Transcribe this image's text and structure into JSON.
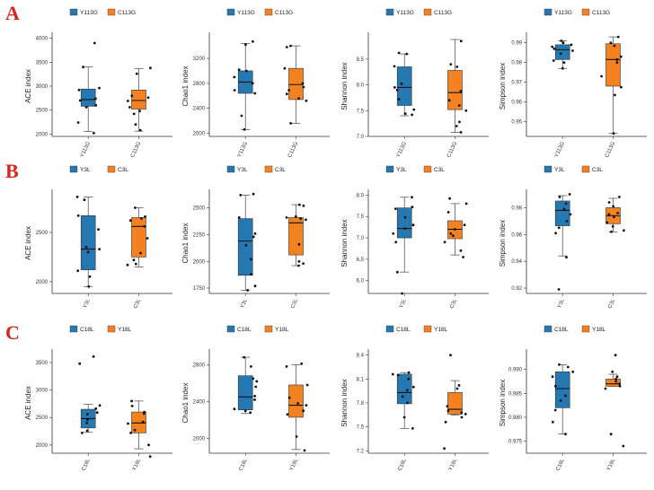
{
  "colors": {
    "blue": "#2678b2",
    "orange": "#f58220",
    "point": "#111111",
    "axis": "#333333",
    "row_label": "#d7261e"
  },
  "row_labels": [
    "A",
    "B",
    "C"
  ],
  "chart_data": [
    {
      "type": "box",
      "panel": "A-ACE",
      "ylabel": "ACE index",
      "legend": [
        "Y113G",
        "C113G"
      ],
      "categories": [
        "Y113G",
        "C113G"
      ],
      "ylim": [
        1950,
        4050
      ],
      "yticks": [
        2000,
        2500,
        3000,
        3500,
        4000
      ],
      "boxes": [
        {
          "min": 2050,
          "q1": 2580,
          "median": 2720,
          "q3": 2940,
          "max": 3400
        },
        {
          "min": 2060,
          "q1": 2520,
          "median": 2700,
          "q3": 2920,
          "max": 3370
        }
      ],
      "points": [
        [
          2020,
          2240,
          2560,
          2600,
          2700,
          2740,
          2920,
          2960,
          3400,
          3900
        ],
        [
          2080,
          2200,
          2420,
          2480,
          2560,
          2690,
          2760,
          2800,
          3260,
          3380
        ]
      ]
    },
    {
      "type": "box",
      "panel": "A-Chao1",
      "ylabel": "Chao1 index",
      "legend": [
        "Y113G",
        "C113G"
      ],
      "categories": [
        "Y113G",
        "C113G"
      ],
      "ylim": [
        1950,
        3560
      ],
      "yticks": [
        2000,
        2400,
        2800,
        3200
      ],
      "boxes": [
        {
          "min": 2060,
          "q1": 2640,
          "median": 2820,
          "q3": 3000,
          "max": 3440
        },
        {
          "min": 2160,
          "q1": 2540,
          "median": 2780,
          "q3": 3040,
          "max": 3400
        }
      ],
      "points": [
        [
          2060,
          2280,
          2640,
          2690,
          2800,
          2900,
          3000,
          3020,
          3420,
          3470
        ],
        [
          2160,
          2520,
          2560,
          2630,
          2690,
          2740,
          2800,
          3040,
          3380,
          3400
        ]
      ]
    },
    {
      "type": "box",
      "panel": "A-Shannon",
      "ylabel": "Shannon index",
      "legend": [
        "Y113G",
        "C113G"
      ],
      "categories": [
        "Y113G",
        "C113G"
      ],
      "ylim": [
        7.0,
        8.95
      ],
      "yticks": [
        7.0,
        7.5,
        8.0,
        8.5
      ],
      "boxes": [
        {
          "min": 7.4,
          "q1": 7.6,
          "median": 7.95,
          "q3": 8.35,
          "max": 8.6
        },
        {
          "min": 7.08,
          "q1": 7.52,
          "median": 7.85,
          "q3": 8.28,
          "max": 8.88
        }
      ],
      "points": [
        [
          7.42,
          7.44,
          7.52,
          7.72,
          7.9,
          7.95,
          8.02,
          8.36,
          8.6,
          8.62
        ],
        [
          7.08,
          7.2,
          7.28,
          7.5,
          7.6,
          7.7,
          7.88,
          8.35,
          8.4,
          8.85
        ]
      ]
    },
    {
      "type": "box",
      "panel": "A-Simpson",
      "ylabel": "Simpson index",
      "legend": [
        "Y113G",
        "C113G"
      ],
      "categories": [
        "Y113G",
        "C113G"
      ],
      "ylim": [
        0.9425,
        0.9935
      ],
      "yticks": [
        0.95,
        0.96,
        0.97,
        0.98,
        0.99
      ],
      "boxes": [
        {
          "min": 0.977,
          "q1": 0.9815,
          "median": 0.9865,
          "q3": 0.989,
          "max": 0.991
        },
        {
          "min": 0.944,
          "q1": 0.968,
          "median": 0.9815,
          "q3": 0.9895,
          "max": 0.993
        }
      ],
      "points": [
        [
          0.977,
          0.98,
          0.981,
          0.9845,
          0.986,
          0.987,
          0.988,
          0.989,
          0.99,
          0.991
        ],
        [
          0.944,
          0.9635,
          0.9675,
          0.973,
          0.98,
          0.9815,
          0.983,
          0.9885,
          0.99,
          0.993
        ]
      ]
    },
    {
      "type": "box",
      "panel": "B-ACE",
      "ylabel": "ACE index",
      "legend": [
        "Y3L",
        "C3L"
      ],
      "categories": [
        "Y3L",
        "C3L"
      ],
      "ylim": [
        1880,
        2900
      ],
      "yticks": [
        2000,
        2500
      ],
      "boxes": [
        {
          "min": 1950,
          "q1": 2120,
          "median": 2330,
          "q3": 2670,
          "max": 2860
        },
        {
          "min": 2150,
          "q1": 2250,
          "median": 2560,
          "q3": 2650,
          "max": 2750
        }
      ],
      "points": [
        [
          1950,
          2050,
          2110,
          2300,
          2330,
          2350,
          2530,
          2670,
          2830,
          2860
        ],
        [
          2170,
          2180,
          2220,
          2290,
          2440,
          2560,
          2620,
          2640,
          2660,
          2750
        ]
      ]
    },
    {
      "type": "box",
      "panel": "B-Chao1",
      "ylabel": "Chao1 index",
      "legend": [
        "Y3L",
        "C3L"
      ],
      "categories": [
        "Y3L",
        "C3L"
      ],
      "ylim": [
        1700,
        2640
      ],
      "yticks": [
        1750,
        2000,
        2250,
        2500
      ],
      "boxes": [
        {
          "min": 1730,
          "q1": 1870,
          "median": 2190,
          "q3": 2400,
          "max": 2620
        },
        {
          "min": 1960,
          "q1": 2060,
          "median": 2360,
          "q3": 2410,
          "max": 2530
        }
      ],
      "points": [
        [
          1730,
          1770,
          1880,
          2020,
          2150,
          2230,
          2260,
          2410,
          2620,
          2630
        ],
        [
          1960,
          1980,
          2000,
          2160,
          2390,
          2400,
          2410,
          2420,
          2520,
          2530
        ]
      ]
    },
    {
      "type": "box",
      "panel": "B-Shannon",
      "ylabel": "Shannon index",
      "legend": [
        "Y3L",
        "C3L"
      ],
      "categories": [
        "Y3L",
        "C3L"
      ],
      "ylim": [
        5.7,
        8.05
      ],
      "yticks": [
        6.0,
        6.5,
        7.0,
        7.5,
        8.0
      ],
      "boxes": [
        {
          "min": 6.2,
          "q1": 7.0,
          "median": 7.22,
          "q3": 7.7,
          "max": 7.95
        },
        {
          "min": 6.6,
          "q1": 6.98,
          "median": 7.2,
          "q3": 7.4,
          "max": 7.8
        }
      ],
      "points": [
        [
          5.7,
          6.2,
          6.9,
          7.1,
          7.22,
          7.3,
          7.48,
          7.68,
          7.72,
          7.95
        ],
        [
          6.55,
          6.7,
          6.9,
          7.05,
          7.1,
          7.2,
          7.3,
          7.6,
          7.8,
          7.92
        ]
      ]
    },
    {
      "type": "box",
      "panel": "B-Simpson",
      "ylabel": "Simpson index",
      "legend": [
        "Y3L",
        "C3L"
      ],
      "categories": [
        "Y3L",
        "C3L"
      ],
      "ylim": [
        0.916,
        0.991
      ],
      "yticks": [
        0.92,
        0.94,
        0.96,
        0.98
      ],
      "boxes": [
        {
          "min": 0.944,
          "q1": 0.9665,
          "median": 0.978,
          "q3": 0.985,
          "max": 0.989
        },
        {
          "min": 0.962,
          "q1": 0.968,
          "median": 0.974,
          "q3": 0.98,
          "max": 0.987
        }
      ],
      "points": [
        [
          0.919,
          0.943,
          0.961,
          0.965,
          0.97,
          0.975,
          0.979,
          0.983,
          0.988,
          0.99
        ],
        [
          0.962,
          0.963,
          0.966,
          0.969,
          0.973,
          0.975,
          0.976,
          0.981,
          0.984,
          0.988
        ]
      ]
    },
    {
      "type": "box",
      "panel": "C-ACE",
      "ylabel": "ACE index",
      "legend": [
        "C18L",
        "Y18L"
      ],
      "categories": [
        "C18L",
        "Y18L"
      ],
      "ylim": [
        1850,
        3680
      ],
      "yticks": [
        2000,
        2500,
        3000,
        3500
      ],
      "boxes": [
        {
          "min": 2230,
          "q1": 2310,
          "median": 2480,
          "q3": 2650,
          "max": 2740
        },
        {
          "min": 1930,
          "q1": 2220,
          "median": 2400,
          "q3": 2600,
          "max": 2800
        }
      ],
      "points": [
        [
          2220,
          2260,
          2400,
          2460,
          2560,
          2590,
          2660,
          2720,
          3480,
          3610
        ],
        [
          1790,
          2000,
          2220,
          2270,
          2390,
          2420,
          2570,
          2600,
          2710,
          2800
        ]
      ]
    },
    {
      "type": "box",
      "panel": "C-Chao1",
      "ylabel": "Chao1 index",
      "legend": [
        "C18L",
        "Y18L"
      ],
      "categories": [
        "C18L",
        "Y18L"
      ],
      "ylim": [
        1840,
        2930
      ],
      "yticks": [
        2000,
        2400,
        2800
      ],
      "boxes": [
        {
          "min": 2270,
          "q1": 2310,
          "median": 2450,
          "q3": 2680,
          "max": 2880
        },
        {
          "min": 1880,
          "q1": 2230,
          "median": 2360,
          "q3": 2580,
          "max": 2800
        }
      ],
      "points": [
        [
          2280,
          2300,
          2320,
          2420,
          2460,
          2560,
          2620,
          2650,
          2780,
          2880
        ],
        [
          1870,
          2020,
          2260,
          2300,
          2360,
          2380,
          2440,
          2580,
          2780,
          2810
        ]
      ]
    },
    {
      "type": "box",
      "panel": "C-Shannon",
      "ylabel": "Shannon index",
      "legend": [
        "C18L",
        "Y18L"
      ],
      "categories": [
        "C18L",
        "Y18L"
      ],
      "ylim": [
        7.17,
        8.43
      ],
      "yticks": [
        7.2,
        7.5,
        7.8,
        8.1,
        8.4
      ],
      "boxes": [
        {
          "min": 7.48,
          "q1": 7.79,
          "median": 7.93,
          "q3": 8.16,
          "max": 8.18
        },
        {
          "min": 7.65,
          "q1": 7.66,
          "median": 7.72,
          "q3": 7.93,
          "max": 8.08
        }
      ],
      "points": [
        [
          7.48,
          7.62,
          7.8,
          7.88,
          7.96,
          8.0,
          8.1,
          8.15,
          8.16,
          8.18
        ],
        [
          7.23,
          7.56,
          7.62,
          7.66,
          7.68,
          7.7,
          7.76,
          7.98,
          8.02,
          8.4
        ]
      ]
    },
    {
      "type": "box",
      "panel": "C-Simpson",
      "ylabel": "Simpson index",
      "legend": [
        "C18L",
        "Y18L"
      ],
      "categories": [
        "C18L",
        "Y18L"
      ],
      "ylim": [
        0.9725,
        0.9935
      ],
      "yticks": [
        0.975,
        0.98,
        0.985,
        0.99
      ],
      "boxes": [
        {
          "min": 0.9765,
          "q1": 0.982,
          "median": 0.986,
          "q3": 0.9895,
          "max": 0.991
        },
        {
          "min": 0.9865,
          "q1": 0.9865,
          "median": 0.987,
          "q3": 0.988,
          "max": 0.989
        }
      ],
      "points": [
        [
          0.9765,
          0.979,
          0.9815,
          0.9835,
          0.9845,
          0.9865,
          0.9885,
          0.9895,
          0.9905,
          0.991
        ],
        [
          0.974,
          0.9765,
          0.986,
          0.9865,
          0.987,
          0.9875,
          0.988,
          0.9885,
          0.9895,
          0.993
        ]
      ]
    }
  ]
}
